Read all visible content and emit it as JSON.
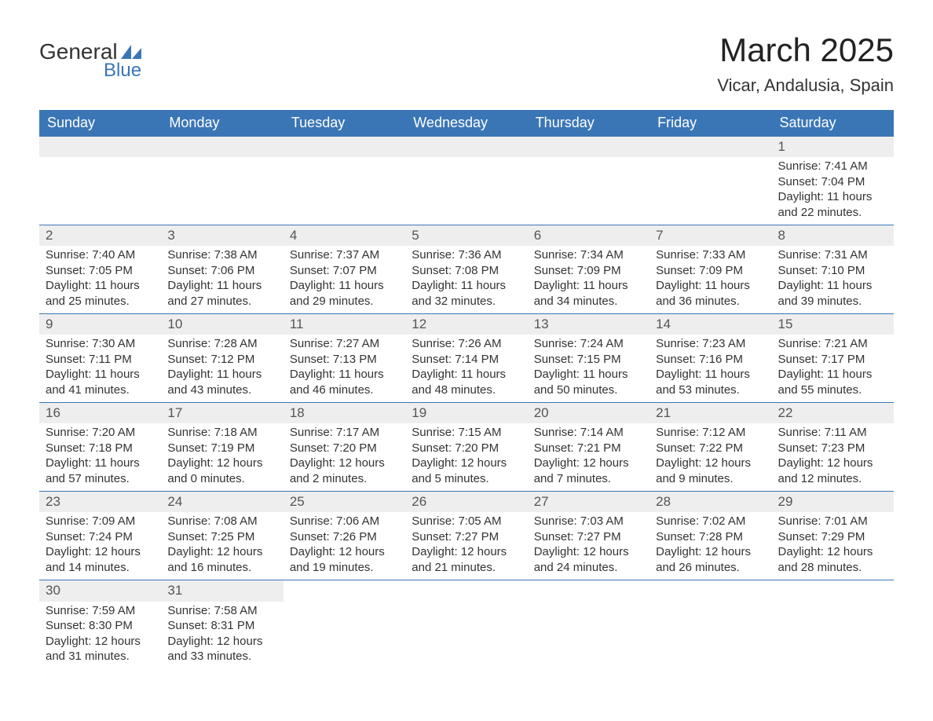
{
  "logo": {
    "text1": "General",
    "text2": "Blue",
    "brand_color": "#3a76b6"
  },
  "title": "March 2025",
  "location": "Vicar, Andalusia, Spain",
  "day_headers": [
    "Sunday",
    "Monday",
    "Tuesday",
    "Wednesday",
    "Thursday",
    "Friday",
    "Saturday"
  ],
  "colors": {
    "header_bg": "#3a76b6",
    "header_text": "#ffffff",
    "daynum_bg": "#eeeeee",
    "row_divider": "#3a76b6",
    "body_text": "#333333",
    "background": "#ffffff"
  },
  "typography": {
    "title_fontsize": 42,
    "location_fontsize": 22,
    "header_fontsize": 18,
    "daynum_fontsize": 17,
    "cell_fontsize": 15,
    "font_family": "Arial"
  },
  "labels": {
    "sunrise": "Sunrise:",
    "sunset": "Sunset:",
    "daylight": "Daylight:"
  },
  "weeks": [
    {
      "daynums": [
        "",
        "",
        "",
        "",
        "",
        "",
        "1"
      ],
      "cells": [
        null,
        null,
        null,
        null,
        null,
        null,
        {
          "sunrise": "7:41 AM",
          "sunset": "7:04 PM",
          "daylight1": "11 hours",
          "daylight2": "and 22 minutes."
        }
      ]
    },
    {
      "daynums": [
        "2",
        "3",
        "4",
        "5",
        "6",
        "7",
        "8"
      ],
      "cells": [
        {
          "sunrise": "7:40 AM",
          "sunset": "7:05 PM",
          "daylight1": "11 hours",
          "daylight2": "and 25 minutes."
        },
        {
          "sunrise": "7:38 AM",
          "sunset": "7:06 PM",
          "daylight1": "11 hours",
          "daylight2": "and 27 minutes."
        },
        {
          "sunrise": "7:37 AM",
          "sunset": "7:07 PM",
          "daylight1": "11 hours",
          "daylight2": "and 29 minutes."
        },
        {
          "sunrise": "7:36 AM",
          "sunset": "7:08 PM",
          "daylight1": "11 hours",
          "daylight2": "and 32 minutes."
        },
        {
          "sunrise": "7:34 AM",
          "sunset": "7:09 PM",
          "daylight1": "11 hours",
          "daylight2": "and 34 minutes."
        },
        {
          "sunrise": "7:33 AM",
          "sunset": "7:09 PM",
          "daylight1": "11 hours",
          "daylight2": "and 36 minutes."
        },
        {
          "sunrise": "7:31 AM",
          "sunset": "7:10 PM",
          "daylight1": "11 hours",
          "daylight2": "and 39 minutes."
        }
      ]
    },
    {
      "daynums": [
        "9",
        "10",
        "11",
        "12",
        "13",
        "14",
        "15"
      ],
      "cells": [
        {
          "sunrise": "7:30 AM",
          "sunset": "7:11 PM",
          "daylight1": "11 hours",
          "daylight2": "and 41 minutes."
        },
        {
          "sunrise": "7:28 AM",
          "sunset": "7:12 PM",
          "daylight1": "11 hours",
          "daylight2": "and 43 minutes."
        },
        {
          "sunrise": "7:27 AM",
          "sunset": "7:13 PM",
          "daylight1": "11 hours",
          "daylight2": "and 46 minutes."
        },
        {
          "sunrise": "7:26 AM",
          "sunset": "7:14 PM",
          "daylight1": "11 hours",
          "daylight2": "and 48 minutes."
        },
        {
          "sunrise": "7:24 AM",
          "sunset": "7:15 PM",
          "daylight1": "11 hours",
          "daylight2": "and 50 minutes."
        },
        {
          "sunrise": "7:23 AM",
          "sunset": "7:16 PM",
          "daylight1": "11 hours",
          "daylight2": "and 53 minutes."
        },
        {
          "sunrise": "7:21 AM",
          "sunset": "7:17 PM",
          "daylight1": "11 hours",
          "daylight2": "and 55 minutes."
        }
      ]
    },
    {
      "daynums": [
        "16",
        "17",
        "18",
        "19",
        "20",
        "21",
        "22"
      ],
      "cells": [
        {
          "sunrise": "7:20 AM",
          "sunset": "7:18 PM",
          "daylight1": "11 hours",
          "daylight2": "and 57 minutes."
        },
        {
          "sunrise": "7:18 AM",
          "sunset": "7:19 PM",
          "daylight1": "12 hours",
          "daylight2": "and 0 minutes."
        },
        {
          "sunrise": "7:17 AM",
          "sunset": "7:20 PM",
          "daylight1": "12 hours",
          "daylight2": "and 2 minutes."
        },
        {
          "sunrise": "7:15 AM",
          "sunset": "7:20 PM",
          "daylight1": "12 hours",
          "daylight2": "and 5 minutes."
        },
        {
          "sunrise": "7:14 AM",
          "sunset": "7:21 PM",
          "daylight1": "12 hours",
          "daylight2": "and 7 minutes."
        },
        {
          "sunrise": "7:12 AM",
          "sunset": "7:22 PM",
          "daylight1": "12 hours",
          "daylight2": "and 9 minutes."
        },
        {
          "sunrise": "7:11 AM",
          "sunset": "7:23 PM",
          "daylight1": "12 hours",
          "daylight2": "and 12 minutes."
        }
      ]
    },
    {
      "daynums": [
        "23",
        "24",
        "25",
        "26",
        "27",
        "28",
        "29"
      ],
      "cells": [
        {
          "sunrise": "7:09 AM",
          "sunset": "7:24 PM",
          "daylight1": "12 hours",
          "daylight2": "and 14 minutes."
        },
        {
          "sunrise": "7:08 AM",
          "sunset": "7:25 PM",
          "daylight1": "12 hours",
          "daylight2": "and 16 minutes."
        },
        {
          "sunrise": "7:06 AM",
          "sunset": "7:26 PM",
          "daylight1": "12 hours",
          "daylight2": "and 19 minutes."
        },
        {
          "sunrise": "7:05 AM",
          "sunset": "7:27 PM",
          "daylight1": "12 hours",
          "daylight2": "and 21 minutes."
        },
        {
          "sunrise": "7:03 AM",
          "sunset": "7:27 PM",
          "daylight1": "12 hours",
          "daylight2": "and 24 minutes."
        },
        {
          "sunrise": "7:02 AM",
          "sunset": "7:28 PM",
          "daylight1": "12 hours",
          "daylight2": "and 26 minutes."
        },
        {
          "sunrise": "7:01 AM",
          "sunset": "7:29 PM",
          "daylight1": "12 hours",
          "daylight2": "and 28 minutes."
        }
      ]
    },
    {
      "daynums": [
        "30",
        "31",
        "",
        "",
        "",
        "",
        ""
      ],
      "cells": [
        {
          "sunrise": "7:59 AM",
          "sunset": "8:30 PM",
          "daylight1": "12 hours",
          "daylight2": "and 31 minutes."
        },
        {
          "sunrise": "7:58 AM",
          "sunset": "8:31 PM",
          "daylight1": "12 hours",
          "daylight2": "and 33 minutes."
        },
        null,
        null,
        null,
        null,
        null
      ]
    }
  ]
}
